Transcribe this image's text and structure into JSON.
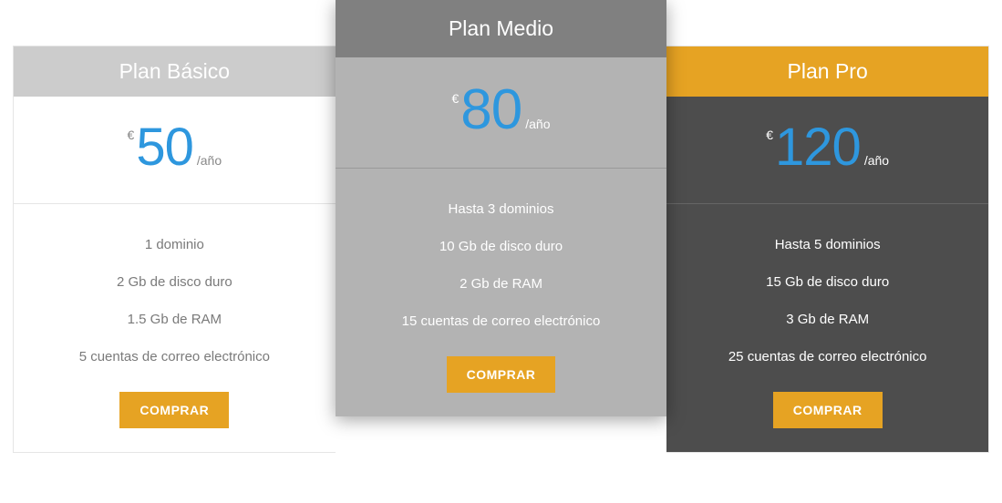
{
  "currency_symbol": "€",
  "period_label": "/año",
  "buy_label": "COMPRAR",
  "colors": {
    "accent_price": "#2e97de",
    "accent_button": "#e6a323",
    "basic_header": "#cccccc",
    "featured_header": "#808080",
    "featured_body": "#b3b3b3",
    "pro_header": "#e6a323",
    "pro_body": "#4d4d4d"
  },
  "plans": {
    "basic": {
      "title": "Plan Básico",
      "price": "50",
      "features": [
        "1 dominio",
        "2 Gb de disco duro",
        "1.5 Gb de RAM",
        "5 cuentas de correo electrónico"
      ]
    },
    "medio": {
      "title": "Plan Medio",
      "price": "80",
      "features": [
        "Hasta 3 dominios",
        "10 Gb de disco duro",
        "2 Gb de RAM",
        "15 cuentas de correo electrónico"
      ]
    },
    "pro": {
      "title": "Plan Pro",
      "price": "120",
      "features": [
        "Hasta 5 dominios",
        "15 Gb de disco duro",
        "3 Gb de RAM",
        "25 cuentas de correo electrónico"
      ]
    }
  }
}
